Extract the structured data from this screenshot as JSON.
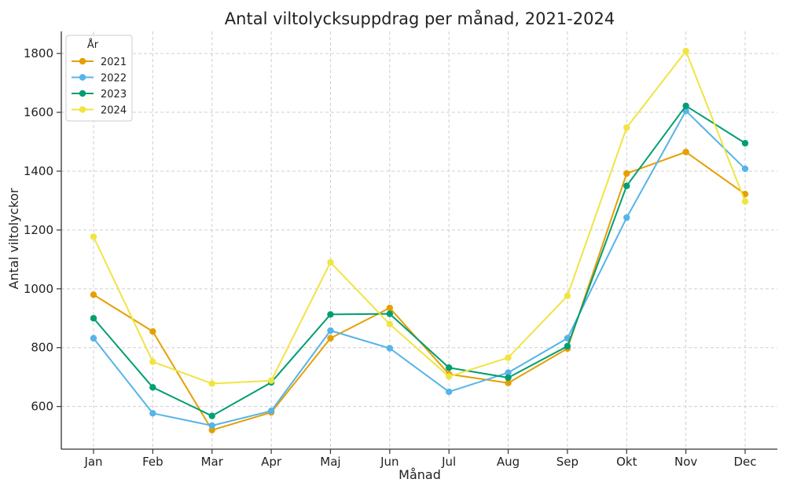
{
  "chart_data": {
    "type": "line",
    "title": "Antal viltolycksuppdrag per månad, 2021-2024",
    "xlabel": "Månad",
    "ylabel": "Antal viltolyckor",
    "categories": [
      "Jan",
      "Feb",
      "Mar",
      "Apr",
      "Maj",
      "Jun",
      "Jul",
      "Aug",
      "Sep",
      "Okt",
      "Nov",
      "Dec"
    ],
    "ylim": [
      455,
      1875
    ],
    "yticks": [
      600,
      800,
      1000,
      1200,
      1400,
      1600,
      1800
    ],
    "grid": true,
    "legend": {
      "title": "År",
      "position": "top-left"
    },
    "series": [
      {
        "name": "2021",
        "color": "#E69F00",
        "values": [
          980,
          855,
          520,
          580,
          832,
          935,
          710,
          680,
          797,
          1392,
          1465,
          1322
        ]
      },
      {
        "name": "2022",
        "color": "#56B4E9",
        "values": [
          832,
          577,
          535,
          585,
          858,
          798,
          650,
          715,
          832,
          1242,
          1605,
          1408
        ]
      },
      {
        "name": "2023",
        "color": "#009E73",
        "values": [
          900,
          665,
          568,
          682,
          913,
          915,
          732,
          698,
          805,
          1350,
          1622,
          1495
        ]
      },
      {
        "name": "2024",
        "color": "#F0E442",
        "values": [
          1177,
          752,
          678,
          688,
          1090,
          880,
          702,
          766,
          976,
          1548,
          1808,
          1297
        ]
      }
    ]
  }
}
